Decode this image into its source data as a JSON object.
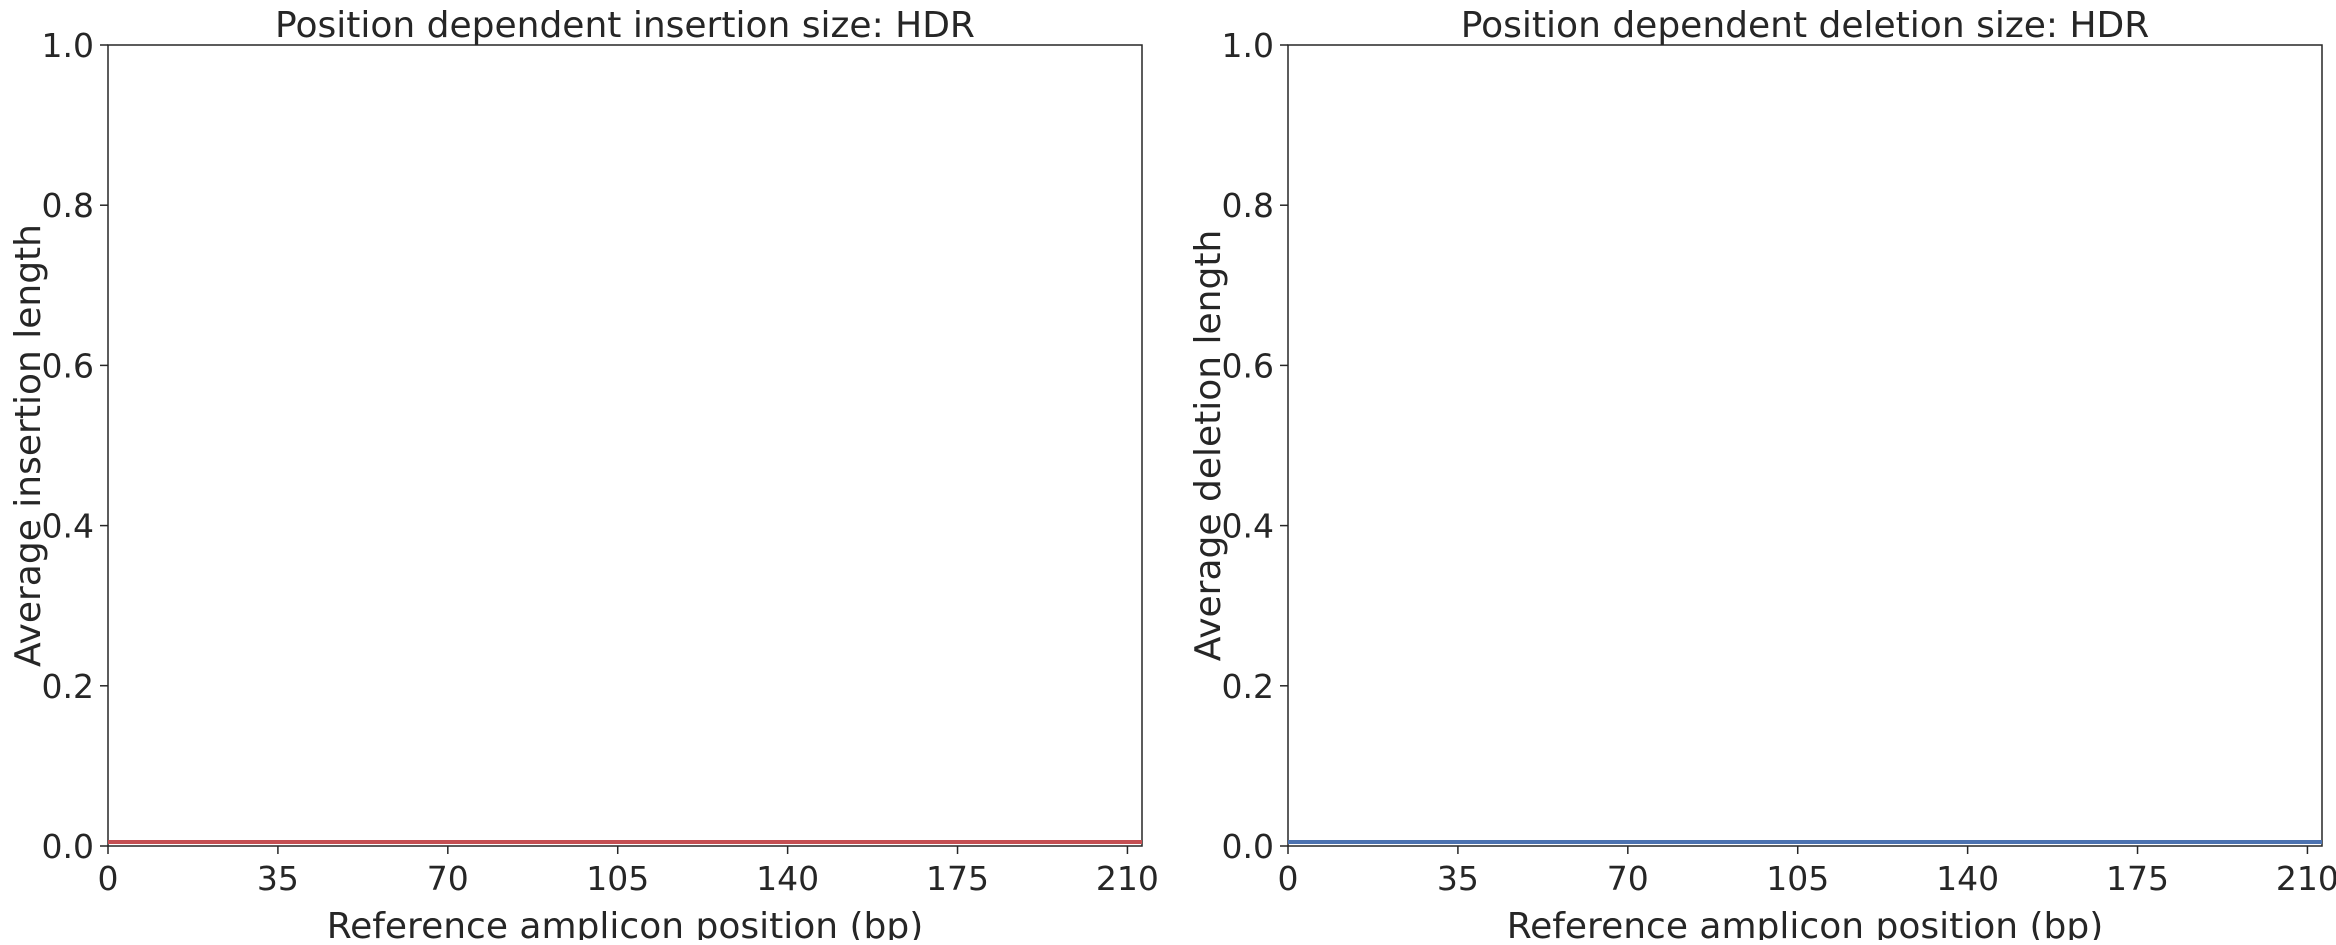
{
  "chart_data": [
    {
      "type": "line",
      "title": "Position dependent insertion size: HDR",
      "xlabel": "Reference amplicon position (bp)",
      "ylabel": "Average insertion length",
      "xlim": [
        0,
        213
      ],
      "ylim": [
        0,
        1.0
      ],
      "xticks": [
        0,
        35,
        70,
        105,
        140,
        175,
        210
      ],
      "yticks": [
        0.0,
        0.2,
        0.4,
        0.6,
        0.8,
        1.0
      ],
      "xtick_labels": [
        "0",
        "35",
        "70",
        "105",
        "140",
        "175",
        "210"
      ],
      "ytick_labels": [
        "0.0",
        "0.2",
        "0.4",
        "0.6",
        "0.8",
        "1.0"
      ],
      "grid": false,
      "series": [
        {
          "x_start": 0,
          "x_end": 213,
          "value": 0,
          "color": "#c44e52"
        }
      ]
    },
    {
      "type": "line",
      "title": "Position dependent deletion size: HDR",
      "xlabel": "Reference amplicon position (bp)",
      "ylabel": "Average deletion length",
      "xlim": [
        0,
        213
      ],
      "ylim": [
        0,
        1.0
      ],
      "xticks": [
        0,
        35,
        70,
        105,
        140,
        175,
        210
      ],
      "yticks": [
        0.0,
        0.2,
        0.4,
        0.6,
        0.8,
        1.0
      ],
      "xtick_labels": [
        "0",
        "35",
        "70",
        "105",
        "140",
        "175",
        "210"
      ],
      "ytick_labels": [
        "0.0",
        "0.2",
        "0.4",
        "0.6",
        "0.8",
        "1.0"
      ],
      "grid": false,
      "series": [
        {
          "x_start": 0,
          "x_end": 213,
          "value": 0,
          "color": "#4c72b0"
        }
      ]
    }
  ]
}
